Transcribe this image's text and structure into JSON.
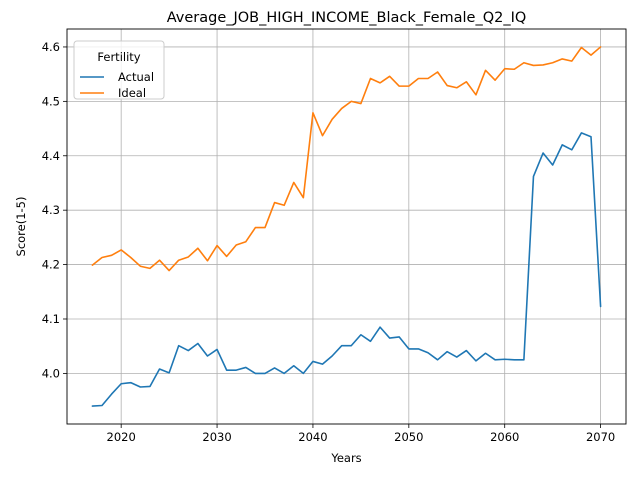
{
  "chart_data": {
    "type": "line",
    "title": "Average_JOB_HIGH_INCOME_Black_Female_Q2_IQ",
    "xlabel": "Years",
    "ylabel": "Score(1-5)",
    "xlim": [
      2014.35,
      2072.65
    ],
    "ylim": [
      3.907,
      4.633
    ],
    "xticks": [
      2020,
      2030,
      2040,
      2050,
      2060,
      2070
    ],
    "yticks": [
      4.0,
      4.1,
      4.2,
      4.3,
      4.4,
      4.5,
      4.6
    ],
    "xtick_labels": [
      "2020",
      "2030",
      "2040",
      "2050",
      "2060",
      "2070"
    ],
    "ytick_labels": [
      "4.0",
      "4.1",
      "4.2",
      "4.3",
      "4.4",
      "4.5",
      "4.6"
    ],
    "grid": true,
    "legend": {
      "title": "Fertility",
      "placement": "top-left"
    },
    "x": [
      2017,
      2018,
      2019,
      2020,
      2021,
      2022,
      2023,
      2024,
      2025,
      2026,
      2027,
      2028,
      2029,
      2030,
      2031,
      2032,
      2033,
      2034,
      2035,
      2036,
      2037,
      2038,
      2039,
      2040,
      2041,
      2042,
      2043,
      2044,
      2045,
      2046,
      2047,
      2048,
      2049,
      2050,
      2051,
      2052,
      2053,
      2054,
      2055,
      2056,
      2057,
      2058,
      2059,
      2060,
      2061,
      2062,
      2063,
      2064,
      2065,
      2066,
      2067,
      2068,
      2069,
      2070
    ],
    "series": [
      {
        "name": "Actual",
        "color": "#1f77b4",
        "values": [
          3.94,
          3.941,
          3.962,
          3.981,
          3.983,
          3.975,
          3.976,
          4.008,
          4.001,
          4.051,
          4.042,
          4.055,
          4.032,
          4.044,
          4.006,
          4.006,
          4.011,
          4.0,
          4.0,
          4.01,
          4.0,
          4.014,
          4.0,
          4.022,
          4.017,
          4.032,
          4.051,
          4.051,
          4.071,
          4.059,
          4.085,
          4.065,
          4.067,
          4.045,
          4.045,
          4.038,
          4.025,
          4.04,
          4.03,
          4.042,
          4.023,
          4.037,
          4.025,
          4.026,
          4.025,
          4.025,
          4.362,
          4.405,
          4.383,
          4.42,
          4.411,
          4.442,
          4.435,
          4.123
        ]
      },
      {
        "name": "Ideal",
        "color": "#ff7f0e",
        "values": [
          4.199,
          4.213,
          4.217,
          4.227,
          4.213,
          4.197,
          4.193,
          4.208,
          4.189,
          4.208,
          4.214,
          4.23,
          4.207,
          4.235,
          4.215,
          4.236,
          4.242,
          4.268,
          4.268,
          4.314,
          4.309,
          4.351,
          4.323,
          4.479,
          4.437,
          4.467,
          4.487,
          4.5,
          4.496,
          4.542,
          4.534,
          4.546,
          4.528,
          4.528,
          4.542,
          4.542,
          4.554,
          4.529,
          4.525,
          4.536,
          4.512,
          4.557,
          4.539,
          4.56,
          4.559,
          4.571,
          4.566,
          4.567,
          4.571,
          4.578,
          4.574,
          4.599,
          4.585,
          4.6
        ]
      }
    ]
  }
}
